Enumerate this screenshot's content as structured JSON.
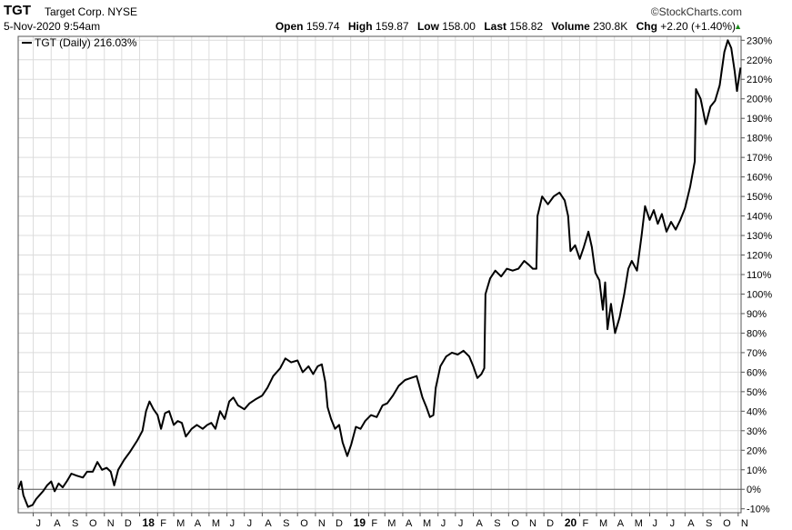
{
  "header": {
    "ticker": "TGT",
    "company": "Target Corp.",
    "exchange": "NYSE",
    "datetime": "5-Nov-2020 9:54am",
    "brand": "©StockCharts.com",
    "open_label": "Open",
    "open": "159.74",
    "high_label": "High",
    "high": "159.87",
    "low_label": "Low",
    "low": "158.00",
    "last_label": "Last",
    "last": "158.82",
    "volume_label": "Volume",
    "volume": "230.8K",
    "chg_label": "Chg",
    "chg": "+2.20 (+1.40%)",
    "up_arrow_icon": "triangle-up-icon"
  },
  "chart_data": {
    "type": "line",
    "legend": "TGT (Daily) 216.03%",
    "legend_placement": "top-left",
    "grid": true,
    "ylim": [
      -12,
      232
    ],
    "y_ticks": [
      "230%",
      "220%",
      "210%",
      "200%",
      "190%",
      "180%",
      "170%",
      "160%",
      "150%",
      "140%",
      "130%",
      "120%",
      "110%",
      "100%",
      "90%",
      "80%",
      "70%",
      "60%",
      "50%",
      "40%",
      "30%",
      "20%",
      "10%",
      "0%",
      "-10%"
    ],
    "y_tick_values": [
      230,
      220,
      210,
      200,
      190,
      180,
      170,
      160,
      150,
      140,
      130,
      120,
      110,
      100,
      90,
      80,
      70,
      60,
      50,
      40,
      30,
      20,
      10,
      0,
      -10
    ],
    "x_ticks": [
      {
        "label": "J",
        "month": "2017-07"
      },
      {
        "label": "A",
        "month": "2017-08"
      },
      {
        "label": "S",
        "month": "2017-09"
      },
      {
        "label": "O",
        "month": "2017-10"
      },
      {
        "label": "N",
        "month": "2017-11"
      },
      {
        "label": "D",
        "month": "2017-12"
      },
      {
        "label": "18",
        "month": "2018-01",
        "bold": true
      },
      {
        "label": "F",
        "month": "2018-02"
      },
      {
        "label": "M",
        "month": "2018-03"
      },
      {
        "label": "A",
        "month": "2018-04"
      },
      {
        "label": "M",
        "month": "2018-05"
      },
      {
        "label": "J",
        "month": "2018-06"
      },
      {
        "label": "J",
        "month": "2018-07"
      },
      {
        "label": "A",
        "month": "2018-08"
      },
      {
        "label": "S",
        "month": "2018-09"
      },
      {
        "label": "O",
        "month": "2018-10"
      },
      {
        "label": "N",
        "month": "2018-11"
      },
      {
        "label": "D",
        "month": "2018-12"
      },
      {
        "label": "19",
        "month": "2019-01",
        "bold": true
      },
      {
        "label": "F",
        "month": "2019-02"
      },
      {
        "label": "M",
        "month": "2019-03"
      },
      {
        "label": "A",
        "month": "2019-04"
      },
      {
        "label": "M",
        "month": "2019-05"
      },
      {
        "label": "J",
        "month": "2019-06"
      },
      {
        "label": "J",
        "month": "2019-07"
      },
      {
        "label": "A",
        "month": "2019-08"
      },
      {
        "label": "S",
        "month": "2019-09"
      },
      {
        "label": "O",
        "month": "2019-10"
      },
      {
        "label": "N",
        "month": "2019-11"
      },
      {
        "label": "D",
        "month": "2019-12"
      },
      {
        "label": "20",
        "month": "2020-01",
        "bold": true
      },
      {
        "label": "F",
        "month": "2020-02"
      },
      {
        "label": "M",
        "month": "2020-03"
      },
      {
        "label": "A",
        "month": "2020-04"
      },
      {
        "label": "M",
        "month": "2020-05"
      },
      {
        "label": "J",
        "month": "2020-06"
      },
      {
        "label": "J",
        "month": "2020-07"
      },
      {
        "label": "A",
        "month": "2020-08"
      },
      {
        "label": "S",
        "month": "2020-09"
      },
      {
        "label": "O",
        "month": "2020-10"
      },
      {
        "label": "N",
        "month": "2020-11"
      }
    ],
    "series": [
      {
        "name": "TGT (Daily)",
        "color": "#000000",
        "points": [
          [
            "2017-06-05",
            0
          ],
          [
            "2017-06-10",
            4
          ],
          [
            "2017-06-14",
            -3
          ],
          [
            "2017-06-22",
            -9
          ],
          [
            "2017-06-30",
            -8
          ],
          [
            "2017-07-06",
            -5
          ],
          [
            "2017-07-12",
            -3
          ],
          [
            "2017-07-18",
            -1
          ],
          [
            "2017-07-25",
            2
          ],
          [
            "2017-08-01",
            4
          ],
          [
            "2017-08-07",
            -1
          ],
          [
            "2017-08-14",
            3
          ],
          [
            "2017-08-21",
            1
          ],
          [
            "2017-08-28",
            4
          ],
          [
            "2017-09-05",
            8
          ],
          [
            "2017-09-14",
            7
          ],
          [
            "2017-09-25",
            6
          ],
          [
            "2017-10-02",
            9
          ],
          [
            "2017-10-12",
            9
          ],
          [
            "2017-10-20",
            14
          ],
          [
            "2017-10-28",
            10
          ],
          [
            "2017-11-05",
            11
          ],
          [
            "2017-11-12",
            9
          ],
          [
            "2017-11-18",
            2
          ],
          [
            "2017-11-25",
            10
          ],
          [
            "2017-12-05",
            15
          ],
          [
            "2017-12-15",
            19
          ],
          [
            "2017-12-28",
            25
          ],
          [
            "2018-01-06",
            30
          ],
          [
            "2018-01-12",
            40
          ],
          [
            "2018-01-18",
            45
          ],
          [
            "2018-01-25",
            41
          ],
          [
            "2018-02-01",
            38
          ],
          [
            "2018-02-07",
            31
          ],
          [
            "2018-02-14",
            39
          ],
          [
            "2018-02-21",
            40
          ],
          [
            "2018-03-01",
            33
          ],
          [
            "2018-03-08",
            35
          ],
          [
            "2018-03-15",
            34
          ],
          [
            "2018-03-22",
            27
          ],
          [
            "2018-04-01",
            31
          ],
          [
            "2018-04-10",
            33
          ],
          [
            "2018-04-20",
            31
          ],
          [
            "2018-04-28",
            33
          ],
          [
            "2018-05-05",
            34
          ],
          [
            "2018-05-12",
            31
          ],
          [
            "2018-05-20",
            40
          ],
          [
            "2018-05-28",
            36
          ],
          [
            "2018-06-05",
            45
          ],
          [
            "2018-06-12",
            47
          ],
          [
            "2018-06-20",
            43
          ],
          [
            "2018-07-01",
            41
          ],
          [
            "2018-07-10",
            44
          ],
          [
            "2018-07-20",
            46
          ],
          [
            "2018-08-01",
            48
          ],
          [
            "2018-08-10",
            52
          ],
          [
            "2018-08-20",
            58
          ],
          [
            "2018-09-01",
            62
          ],
          [
            "2018-09-10",
            67
          ],
          [
            "2018-09-20",
            65
          ],
          [
            "2018-10-01",
            66
          ],
          [
            "2018-10-10",
            60
          ],
          [
            "2018-10-20",
            63
          ],
          [
            "2018-10-28",
            59
          ],
          [
            "2018-11-05",
            63
          ],
          [
            "2018-11-12",
            64
          ],
          [
            "2018-11-18",
            55
          ],
          [
            "2018-11-22",
            42
          ],
          [
            "2018-11-28",
            36
          ],
          [
            "2018-12-05",
            31
          ],
          [
            "2018-12-12",
            33
          ],
          [
            "2018-12-18",
            24
          ],
          [
            "2018-12-26",
            17
          ],
          [
            "2019-01-02",
            23
          ],
          [
            "2019-01-10",
            32
          ],
          [
            "2019-01-18",
            31
          ],
          [
            "2019-01-26",
            35
          ],
          [
            "2019-02-05",
            38
          ],
          [
            "2019-02-15",
            37
          ],
          [
            "2019-02-25",
            43
          ],
          [
            "2019-03-05",
            44
          ],
          [
            "2019-03-15",
            48
          ],
          [
            "2019-03-25",
            53
          ],
          [
            "2019-04-05",
            56
          ],
          [
            "2019-04-15",
            57
          ],
          [
            "2019-04-25",
            58
          ],
          [
            "2019-05-05",
            47
          ],
          [
            "2019-05-12",
            42
          ],
          [
            "2019-05-18",
            37
          ],
          [
            "2019-05-24",
            38
          ],
          [
            "2019-05-28",
            52
          ],
          [
            "2019-06-05",
            63
          ],
          [
            "2019-06-15",
            68
          ],
          [
            "2019-06-25",
            70
          ],
          [
            "2019-07-05",
            69
          ],
          [
            "2019-07-15",
            71
          ],
          [
            "2019-07-25",
            68
          ],
          [
            "2019-08-01",
            63
          ],
          [
            "2019-08-08",
            57
          ],
          [
            "2019-08-15",
            59
          ],
          [
            "2019-08-20",
            62
          ],
          [
            "2019-08-22",
            100
          ],
          [
            "2019-08-30",
            108
          ],
          [
            "2019-09-08",
            112
          ],
          [
            "2019-09-18",
            109
          ],
          [
            "2019-09-28",
            113
          ],
          [
            "2019-10-08",
            112
          ],
          [
            "2019-10-18",
            113
          ],
          [
            "2019-10-28",
            117
          ],
          [
            "2019-11-05",
            115
          ],
          [
            "2019-11-12",
            113
          ],
          [
            "2019-11-18",
            113
          ],
          [
            "2019-11-20",
            140
          ],
          [
            "2019-11-28",
            150
          ],
          [
            "2019-12-08",
            146
          ],
          [
            "2019-12-18",
            150
          ],
          [
            "2019-12-28",
            152
          ],
          [
            "2020-01-06",
            148
          ],
          [
            "2020-01-12",
            140
          ],
          [
            "2020-01-16",
            122
          ],
          [
            "2020-01-24",
            125
          ],
          [
            "2020-02-01",
            118
          ],
          [
            "2020-02-08",
            124
          ],
          [
            "2020-02-16",
            132
          ],
          [
            "2020-02-22",
            124
          ],
          [
            "2020-02-28",
            111
          ],
          [
            "2020-03-06",
            107
          ],
          [
            "2020-03-12",
            92
          ],
          [
            "2020-03-16",
            106
          ],
          [
            "2020-03-20",
            82
          ],
          [
            "2020-03-26",
            95
          ],
          [
            "2020-04-02",
            80
          ],
          [
            "2020-04-10",
            88
          ],
          [
            "2020-04-18",
            100
          ],
          [
            "2020-04-25",
            113
          ],
          [
            "2020-05-01",
            117
          ],
          [
            "2020-05-10",
            112
          ],
          [
            "2020-05-18",
            130
          ],
          [
            "2020-05-24",
            145
          ],
          [
            "2020-06-01",
            138
          ],
          [
            "2020-06-08",
            143
          ],
          [
            "2020-06-15",
            136
          ],
          [
            "2020-06-22",
            141
          ],
          [
            "2020-06-30",
            132
          ],
          [
            "2020-07-08",
            137
          ],
          [
            "2020-07-16",
            133
          ],
          [
            "2020-07-24",
            138
          ],
          [
            "2020-08-01",
            144
          ],
          [
            "2020-08-10",
            155
          ],
          [
            "2020-08-18",
            168
          ],
          [
            "2020-08-20",
            205
          ],
          [
            "2020-08-28",
            200
          ],
          [
            "2020-09-06",
            187
          ],
          [
            "2020-09-14",
            196
          ],
          [
            "2020-09-22",
            199
          ],
          [
            "2020-09-30",
            207
          ],
          [
            "2020-10-08",
            224
          ],
          [
            "2020-10-14",
            230
          ],
          [
            "2020-10-20",
            226
          ],
          [
            "2020-10-26",
            214
          ],
          [
            "2020-10-30",
            204
          ],
          [
            "2020-11-05",
            216
          ]
        ]
      }
    ]
  }
}
